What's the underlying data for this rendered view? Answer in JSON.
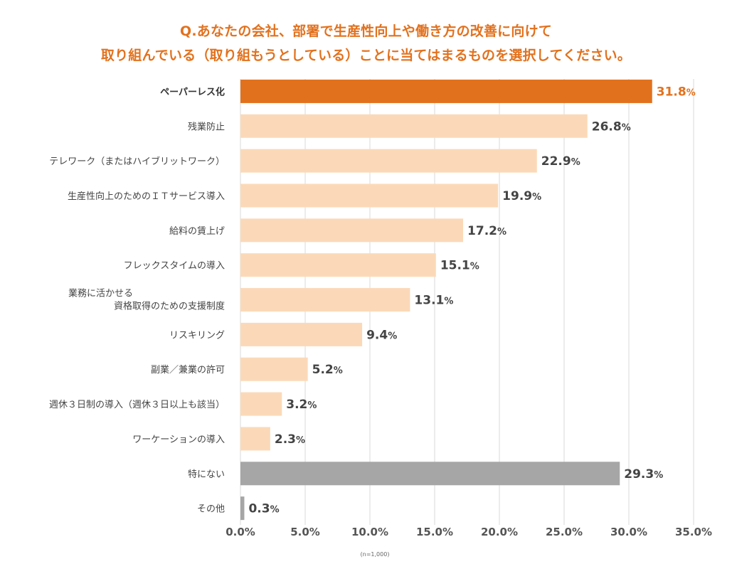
{
  "chart_data": {
    "type": "bar",
    "orientation": "horizontal",
    "title": "Q.あなたの会社、部署で生産性向上や働き方の改善に向けて\n取り組んでいる（取り組もうとしている）ことに当てはまるものを選択してください。",
    "title_lines": [
      "Q.あなたの会社、部署で生産性向上や働き方の改善に向けて",
      "取り組んでいる（取り組もうとしている）ことに当てはまるものを選択してください。"
    ],
    "categories": [
      [
        "ペーパーレス化"
      ],
      [
        "残業防止"
      ],
      [
        "テレワーク（またはハイブリットワーク）"
      ],
      [
        "生産性向上のためのＩＴサービス導入"
      ],
      [
        "給料の賃上げ"
      ],
      [
        "フレックスタイムの導入"
      ],
      [
        "業務に活かせる",
        "資格取得のための支援制度"
      ],
      [
        "リスキリング"
      ],
      [
        "副業／兼業の許可"
      ],
      [
        "週休３日制の導入（週休３日以上も該当）"
      ],
      [
        "ワーケーションの導入"
      ],
      [
        "特にない"
      ],
      [
        "その他"
      ]
    ],
    "values": [
      31.8,
      26.8,
      22.9,
      19.9,
      17.2,
      15.1,
      13.1,
      9.4,
      5.2,
      3.2,
      2.3,
      29.3,
      0.3
    ],
    "value_labels": [
      "31.8",
      "26.8",
      "22.9",
      "19.9",
      "17.2",
      "15.1",
      "13.1",
      "9.4",
      "5.2",
      "3.2",
      "2.3",
      "29.3",
      "0.3"
    ],
    "unit": "%",
    "bar_styles": [
      "highlight",
      "normal",
      "normal",
      "normal",
      "normal",
      "normal",
      "normal",
      "normal",
      "normal",
      "normal",
      "normal",
      "neutral",
      "neutral"
    ],
    "colors": {
      "highlight": "#e2711d",
      "normal": "#fbd9b8",
      "neutral": "#a6a6a6",
      "grid": "#d9d9d9",
      "title": "#e2711d",
      "label": "#444444"
    },
    "xlim": [
      0,
      35
    ],
    "xticks": [
      0,
      5,
      10,
      15,
      20,
      25,
      30,
      35
    ],
    "xtick_labels": [
      "0.0%",
      "5.0%",
      "10.0%",
      "15.0%",
      "20.0%",
      "25.0%",
      "30.0%",
      "35.0%"
    ],
    "xlabel": "",
    "ylabel": "",
    "grid": "vertical",
    "legend": "none",
    "note": "(n=1,000)"
  }
}
